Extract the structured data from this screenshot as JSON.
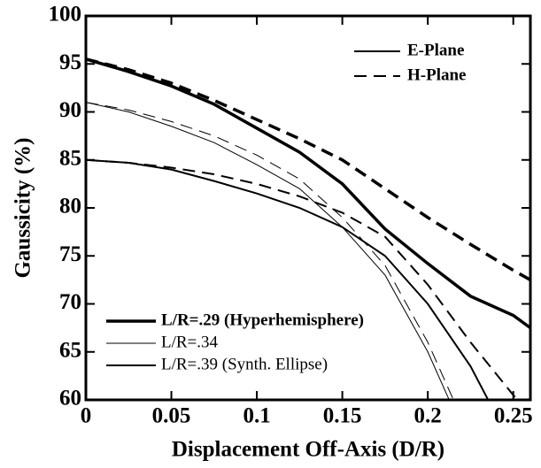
{
  "chart_data": {
    "type": "line",
    "xlabel": "Displacement Off-Axis (D/R)",
    "ylabel": "Gaussicity (%)",
    "xlim": [
      0,
      0.26
    ],
    "xticks": [
      0,
      0.05,
      0.1,
      0.15,
      0.2,
      0.25
    ],
    "ylim": [
      60,
      100
    ],
    "yticks": [
      60,
      65,
      70,
      75,
      80,
      85,
      90,
      95,
      100
    ],
    "line_styles": [
      {
        "name": "E-Plane",
        "dash": "solid"
      },
      {
        "name": "H-Plane",
        "dash": "dashed"
      }
    ],
    "line_widths": [
      {
        "name": "L/R=.29 (Hyperhemisphere)",
        "width": 3.5,
        "bold": true
      },
      {
        "name": "L/R=.34",
        "width": 1,
        "bold": false
      },
      {
        "name": "L/R=.39 (Synth. Ellipse)",
        "width": 2,
        "bold": false
      }
    ],
    "x": [
      0,
      0.025,
      0.05,
      0.075,
      0.1,
      0.125,
      0.15,
      0.175,
      0.2,
      0.225,
      0.25,
      0.26
    ],
    "series": [
      {
        "width_group": 0,
        "style": 0,
        "color": "#000000",
        "values": [
          95.5,
          94.2,
          92.7,
          90.8,
          88.3,
          85.8,
          82.5,
          77.8,
          74.2,
          70.8,
          68.8,
          67.5
        ]
      },
      {
        "width_group": 0,
        "style": 1,
        "color": "#000000",
        "values": [
          95.5,
          94.4,
          93.0,
          91.2,
          89.2,
          87.2,
          85.0,
          82.0,
          79.0,
          76.2,
          73.5,
          72.5
        ]
      },
      {
        "width_group": 1,
        "style": 0,
        "color": "#000000",
        "values": [
          91,
          90,
          88.5,
          86.8,
          84.5,
          82,
          78,
          73,
          65,
          55,
          null,
          null
        ]
      },
      {
        "width_group": 1,
        "style": 1,
        "color": "#000000",
        "values": [
          91,
          90.2,
          89,
          87.5,
          85.5,
          83,
          79,
          74,
          66,
          56,
          null,
          null
        ]
      },
      {
        "width_group": 2,
        "style": 0,
        "color": "#000000",
        "values": [
          85,
          84.7,
          84,
          82.8,
          81.5,
          80,
          78,
          75,
          70,
          63.5,
          55,
          null
        ]
      },
      {
        "width_group": 2,
        "style": 1,
        "color": "#000000",
        "values": [
          85,
          84.7,
          84.2,
          83.5,
          82.5,
          81.2,
          79.5,
          77,
          72,
          66,
          60.5,
          58.5
        ]
      }
    ]
  }
}
